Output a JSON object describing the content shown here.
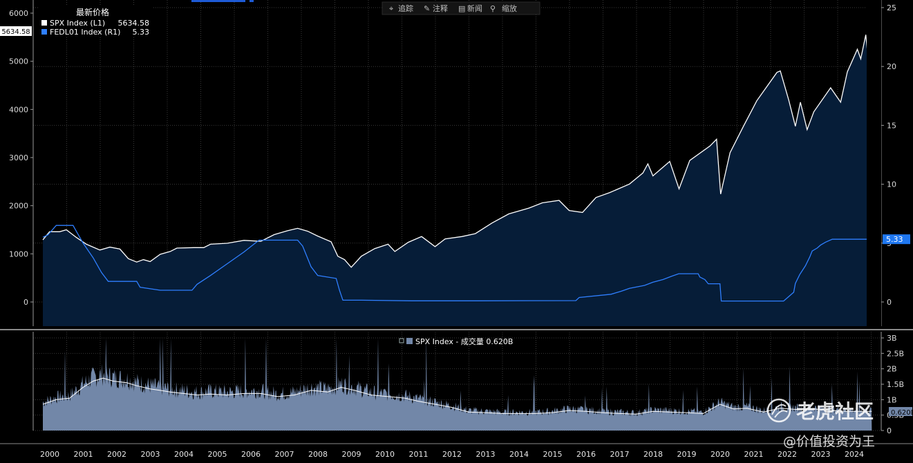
{
  "chart_data": {
    "type": "line",
    "toolbar": [
      {
        "icon": "crosshair-icon",
        "label": "追踪"
      },
      {
        "icon": "pencil-icon",
        "label": "注释"
      },
      {
        "icon": "news-icon",
        "label": "新闻"
      },
      {
        "icon": "magnifier-icon",
        "label": "缩放"
      }
    ],
    "legend": {
      "title": "最新价格",
      "placement": "top-left",
      "entries": [
        {
          "name": "SPX Index (L1)",
          "value": "5634.58",
          "color": "#ffffff"
        },
        {
          "name": "FEDL01 Index (R1)",
          "value": "5.33",
          "color": "#2f7fff"
        }
      ]
    },
    "x_ticks": [
      "2000",
      "2001",
      "2002",
      "2003",
      "2004",
      "2005",
      "2006",
      "2007",
      "2008",
      "2009",
      "2010",
      "2011",
      "2012",
      "2013",
      "2014",
      "2015",
      "2016",
      "2017",
      "2018",
      "2019",
      "2020",
      "2021",
      "2022",
      "2023",
      "2024"
    ],
    "y_left": {
      "ticks": [
        "0",
        "1000",
        "2000",
        "3000",
        "4000",
        "5000",
        "6000"
      ],
      "range": [
        -500,
        6200
      ]
    },
    "y_right": {
      "ticks": [
        "0",
        "5",
        "10",
        "15",
        "20",
        "25"
      ],
      "range": [
        -2.2,
        25.5
      ]
    },
    "last_labels": {
      "spx": "5634.58",
      "fed": "5.33"
    },
    "grid": true,
    "series": [
      {
        "name": "SPX Index (L1)",
        "axis": "left",
        "color": "#ffffff",
        "fill": "#061d38",
        "points": [
          [
            2000.0,
            1290
          ],
          [
            2000.2,
            1460
          ],
          [
            2000.5,
            1460
          ],
          [
            2000.7,
            1500
          ],
          [
            2001.0,
            1340
          ],
          [
            2001.3,
            1200
          ],
          [
            2001.7,
            1080
          ],
          [
            2002.0,
            1140
          ],
          [
            2002.3,
            1100
          ],
          [
            2002.55,
            900
          ],
          [
            2002.8,
            830
          ],
          [
            2003.0,
            880
          ],
          [
            2003.2,
            840
          ],
          [
            2003.5,
            990
          ],
          [
            2003.8,
            1050
          ],
          [
            2004.0,
            1120
          ],
          [
            2004.5,
            1130
          ],
          [
            2004.8,
            1130
          ],
          [
            2005.0,
            1200
          ],
          [
            2005.5,
            1220
          ],
          [
            2006.0,
            1280
          ],
          [
            2006.5,
            1260
          ],
          [
            2006.9,
            1400
          ],
          [
            2007.3,
            1480
          ],
          [
            2007.6,
            1530
          ],
          [
            2007.9,
            1470
          ],
          [
            2008.2,
            1370
          ],
          [
            2008.6,
            1250
          ],
          [
            2008.8,
            950
          ],
          [
            2009.0,
            880
          ],
          [
            2009.2,
            720
          ],
          [
            2009.5,
            950
          ],
          [
            2009.9,
            1110
          ],
          [
            2010.3,
            1200
          ],
          [
            2010.5,
            1050
          ],
          [
            2010.9,
            1240
          ],
          [
            2011.3,
            1360
          ],
          [
            2011.7,
            1150
          ],
          [
            2012.0,
            1310
          ],
          [
            2012.5,
            1360
          ],
          [
            2012.9,
            1420
          ],
          [
            2013.4,
            1640
          ],
          [
            2013.9,
            1830
          ],
          [
            2014.5,
            1950
          ],
          [
            2014.9,
            2060
          ],
          [
            2015.4,
            2110
          ],
          [
            2015.7,
            1900
          ],
          [
            2016.1,
            1860
          ],
          [
            2016.5,
            2170
          ],
          [
            2016.9,
            2270
          ],
          [
            2017.5,
            2450
          ],
          [
            2017.9,
            2680
          ],
          [
            2018.05,
            2870
          ],
          [
            2018.2,
            2620
          ],
          [
            2018.7,
            2920
          ],
          [
            2018.98,
            2350
          ],
          [
            2019.3,
            2940
          ],
          [
            2019.9,
            3240
          ],
          [
            2020.1,
            3380
          ],
          [
            2020.22,
            2240
          ],
          [
            2020.5,
            3100
          ],
          [
            2020.9,
            3650
          ],
          [
            2021.3,
            4180
          ],
          [
            2021.9,
            4770
          ],
          [
            2022.0,
            4800
          ],
          [
            2022.25,
            4200
          ],
          [
            2022.45,
            3650
          ],
          [
            2022.6,
            4150
          ],
          [
            2022.8,
            3580
          ],
          [
            2023.0,
            3950
          ],
          [
            2023.5,
            4450
          ],
          [
            2023.8,
            4150
          ],
          [
            2024.0,
            4780
          ],
          [
            2024.3,
            5250
          ],
          [
            2024.4,
            5050
          ],
          [
            2024.55,
            5550
          ],
          [
            2024.6,
            5190
          ],
          [
            2024.7,
            5630
          ],
          [
            2024.73,
            5634.58
          ]
        ]
      },
      {
        "name": "FEDL01 Index (R1)",
        "axis": "right",
        "color": "#2f7fff",
        "points": [
          [
            2000.0,
            5.5
          ],
          [
            2000.15,
            5.7
          ],
          [
            2000.4,
            6.5
          ],
          [
            2000.9,
            6.5
          ],
          [
            2001.0,
            6.0
          ],
          [
            2001.2,
            5.0
          ],
          [
            2001.5,
            3.75
          ],
          [
            2001.75,
            2.5
          ],
          [
            2001.95,
            1.75
          ],
          [
            2002.8,
            1.75
          ],
          [
            2002.9,
            1.25
          ],
          [
            2003.5,
            1.0
          ],
          [
            2004.45,
            1.0
          ],
          [
            2004.6,
            1.5
          ],
          [
            2005.0,
            2.25
          ],
          [
            2005.5,
            3.25
          ],
          [
            2006.0,
            4.25
          ],
          [
            2006.45,
            5.25
          ],
          [
            2007.6,
            5.25
          ],
          [
            2007.75,
            4.75
          ],
          [
            2008.0,
            3.0
          ],
          [
            2008.2,
            2.25
          ],
          [
            2008.75,
            2.0
          ],
          [
            2008.85,
            1.0
          ],
          [
            2008.95,
            0.15
          ],
          [
            2009.5,
            0.15
          ],
          [
            2011.0,
            0.1
          ],
          [
            2013.0,
            0.1
          ],
          [
            2015.9,
            0.12
          ],
          [
            2016.0,
            0.38
          ],
          [
            2016.95,
            0.66
          ],
          [
            2017.25,
            0.91
          ],
          [
            2017.5,
            1.16
          ],
          [
            2017.95,
            1.41
          ],
          [
            2018.2,
            1.68
          ],
          [
            2018.5,
            1.91
          ],
          [
            2018.75,
            2.18
          ],
          [
            2018.97,
            2.4
          ],
          [
            2019.55,
            2.4
          ],
          [
            2019.6,
            2.12
          ],
          [
            2019.75,
            1.9
          ],
          [
            2019.85,
            1.55
          ],
          [
            2020.2,
            1.55
          ],
          [
            2020.24,
            0.08
          ],
          [
            2021.0,
            0.08
          ],
          [
            2022.1,
            0.08
          ],
          [
            2022.2,
            0.33
          ],
          [
            2022.4,
            0.83
          ],
          [
            2022.45,
            1.58
          ],
          [
            2022.58,
            2.33
          ],
          [
            2022.75,
            3.08
          ],
          [
            2022.88,
            3.83
          ],
          [
            2022.95,
            4.33
          ],
          [
            2023.1,
            4.58
          ],
          [
            2023.2,
            4.83
          ],
          [
            2023.35,
            5.08
          ],
          [
            2023.55,
            5.33
          ],
          [
            2024.73,
            5.33
          ]
        ]
      }
    ],
    "volume": {
      "title": "SPX Index - 成交量 0.620B",
      "ticks": [
        "0",
        "0.5B",
        "1B",
        "1.5B",
        "2B",
        "2.5B",
        "3B"
      ],
      "range": [
        0,
        3.05
      ],
      "last_label": "0.620B",
      "color": "#7287a8",
      "ma_color": "#ffffff",
      "points": [
        [
          2000.0,
          0.85
        ],
        [
          2000.4,
          1.0
        ],
        [
          2000.8,
          1.05
        ],
        [
          2001.2,
          1.4
        ],
        [
          2001.5,
          1.6
        ],
        [
          2001.8,
          1.7
        ],
        [
          2002.1,
          1.6
        ],
        [
          2002.5,
          1.55
        ],
        [
          2002.8,
          1.45
        ],
        [
          2003.2,
          1.35
        ],
        [
          2003.5,
          1.3
        ],
        [
          2003.8,
          1.25
        ],
        [
          2004.2,
          1.2
        ],
        [
          2004.6,
          1.15
        ],
        [
          2005.0,
          1.18
        ],
        [
          2005.5,
          1.15
        ],
        [
          2006.0,
          1.2
        ],
        [
          2006.5,
          1.2
        ],
        [
          2007.0,
          1.1
        ],
        [
          2007.5,
          1.15
        ],
        [
          2008.0,
          1.3
        ],
        [
          2008.5,
          1.25
        ],
        [
          2008.9,
          1.4
        ],
        [
          2009.3,
          1.3
        ],
        [
          2009.8,
          1.15
        ],
        [
          2010.3,
          1.1
        ],
        [
          2010.8,
          1.05
        ],
        [
          2011.2,
          0.95
        ],
        [
          2011.7,
          0.85
        ],
        [
          2012.2,
          0.75
        ],
        [
          2012.7,
          0.6
        ],
        [
          2013.2,
          0.58
        ],
        [
          2013.7,
          0.55
        ],
        [
          2014.2,
          0.55
        ],
        [
          2014.7,
          0.55
        ],
        [
          2015.2,
          0.58
        ],
        [
          2015.7,
          0.65
        ],
        [
          2016.2,
          0.62
        ],
        [
          2016.7,
          0.58
        ],
        [
          2017.2,
          0.55
        ],
        [
          2017.7,
          0.53
        ],
        [
          2018.2,
          0.62
        ],
        [
          2018.7,
          0.6
        ],
        [
          2019.2,
          0.58
        ],
        [
          2019.7,
          0.55
        ],
        [
          2020.2,
          0.85
        ],
        [
          2020.6,
          0.7
        ],
        [
          2021.0,
          0.72
        ],
        [
          2021.5,
          0.6
        ],
        [
          2022.0,
          0.72
        ],
        [
          2022.5,
          0.68
        ],
        [
          2023.0,
          0.7
        ],
        [
          2023.5,
          0.65
        ],
        [
          2024.0,
          0.62
        ],
        [
          2024.5,
          0.62
        ],
        [
          2024.73,
          0.62
        ]
      ]
    }
  },
  "watermark": {
    "logo_text": "老虎社区",
    "author": "@价值投资为王"
  }
}
